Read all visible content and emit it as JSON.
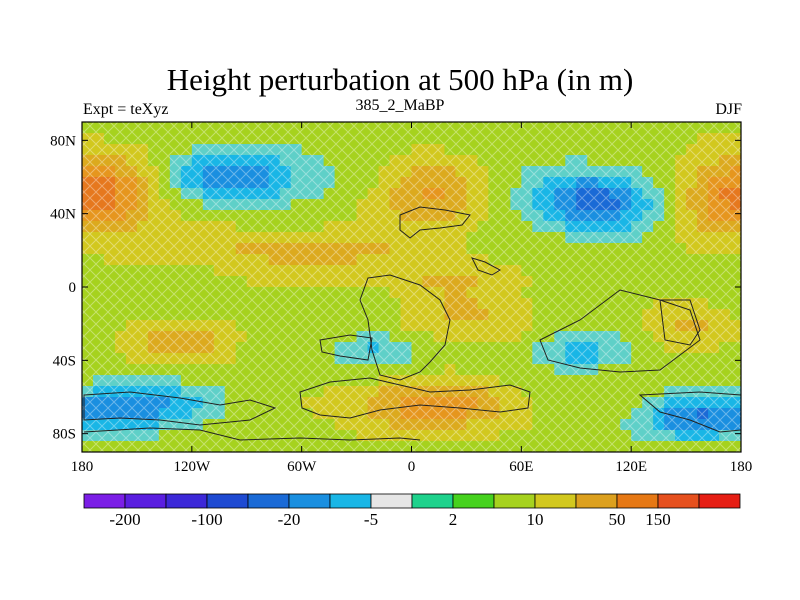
{
  "chart_data": {
    "type": "heatmap",
    "title": "Height perturbation at 500 hPa (in m)",
    "subtitle_left": "Expt = teXyz",
    "subtitle_center": "385_2_MaBP",
    "subtitle_right": "DJF",
    "x_axis": {
      "range": [
        -180,
        180
      ],
      "ticks": [
        -180,
        -120,
        -60,
        0,
        60,
        120,
        180
      ],
      "tick_labels": [
        "180",
        "120W",
        "60W",
        "0",
        "60E",
        "120E",
        "180"
      ]
    },
    "y_axis": {
      "range": [
        -90,
        90
      ],
      "ticks": [
        80,
        40,
        0,
        -40,
        -80
      ],
      "tick_labels": [
        "80N",
        "40N",
        "0",
        "40S",
        "80S"
      ]
    },
    "colorbar": {
      "colors": [
        "#7b1ee6",
        "#5a1ee0",
        "#3c28d8",
        "#1e4ad2",
        "#1a6ad6",
        "#1a8fe0",
        "#19b6e6",
        "#e6e6e6",
        "#1ed28c",
        "#46d21e",
        "#a6d21e",
        "#d2c81e",
        "#dca01e",
        "#e67814",
        "#e6501e",
        "#e61e14"
      ],
      "label_positions": [
        1,
        3,
        5,
        7,
        9,
        11,
        13,
        14
      ],
      "labels": [
        "-200",
        "-100",
        "-20",
        "-5",
        "2",
        "10",
        "50",
        "150"
      ]
    },
    "features": [
      {
        "lon": -160,
        "lat": 50,
        "rx": 28,
        "ry": 22,
        "v": 0.6
      },
      {
        "lon": 170,
        "lat": 50,
        "rx": 28,
        "ry": 22,
        "v": 0.6
      },
      {
        "lon": 10,
        "lat": 50,
        "rx": 30,
        "ry": 20,
        "v": 0.55
      },
      {
        "lon": -95,
        "lat": 60,
        "rx": 40,
        "ry": 14,
        "v": -0.75
      },
      {
        "lon": 100,
        "lat": 47,
        "rx": 34,
        "ry": 16,
        "v": -0.9
      },
      {
        "lon": -60,
        "lat": 20,
        "rx": 70,
        "ry": 12,
        "v": 0.4
      },
      {
        "lon": 30,
        "lat": -15,
        "rx": 35,
        "ry": 18,
        "v": 0.35
      },
      {
        "lon": 10,
        "lat": -65,
        "rx": 45,
        "ry": 14,
        "v": 0.7
      },
      {
        "lon": -130,
        "lat": -30,
        "rx": 30,
        "ry": 12,
        "v": 0.45
      },
      {
        "lon": 150,
        "lat": -20,
        "rx": 25,
        "ry": 12,
        "v": 0.35
      },
      {
        "lon": -150,
        "lat": -65,
        "rx": 35,
        "ry": 12,
        "v": -0.75
      },
      {
        "lon": 155,
        "lat": -72,
        "rx": 30,
        "ry": 12,
        "v": -0.75
      },
      {
        "lon": -20,
        "lat": -35,
        "rx": 20,
        "ry": 10,
        "v": -0.45
      },
      {
        "lon": 90,
        "lat": -35,
        "rx": 25,
        "ry": 10,
        "v": -0.45
      },
      {
        "lon": 0,
        "lat": 5,
        "rx": 80,
        "ry": 8,
        "v": 0.2
      }
    ]
  }
}
